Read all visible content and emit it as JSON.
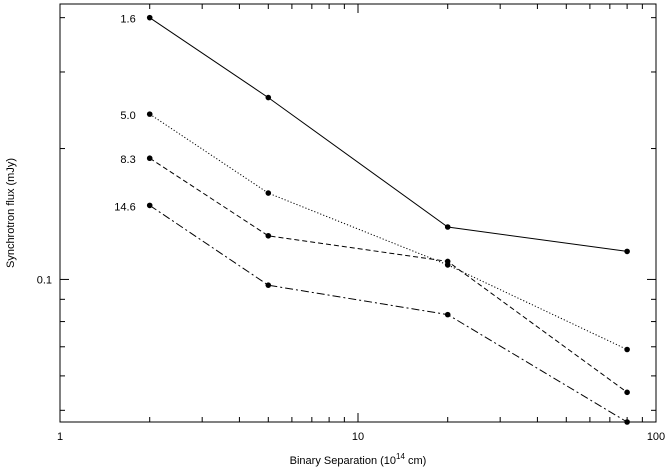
{
  "chart_data": {
    "type": "line",
    "xlabel_main": "Binary Separation (10",
    "xlabel_exp": "14",
    "xlabel_tail": " cm)",
    "ylabel": "Synchrotron flux (mJy)",
    "xscale": "log",
    "yscale": "log",
    "xlim": [
      1,
      100
    ],
    "ylim": [
      0.047,
      0.43
    ],
    "x_ticks": [
      {
        "value": 1,
        "label": "1"
      },
      {
        "value": 10,
        "label": "10"
      },
      {
        "value": 100,
        "label": "100"
      }
    ],
    "y_ticks": [
      {
        "value": 0.1,
        "label": "0.1"
      }
    ],
    "grid": false,
    "series": [
      {
        "name": "1.6",
        "style": "solid",
        "x": [
          2,
          5,
          20,
          80
        ],
        "y": [
          0.4,
          0.262,
          0.132,
          0.116
        ]
      },
      {
        "name": "5.0",
        "style": "dotted",
        "x": [
          2,
          5,
          20,
          80
        ],
        "y": [
          0.24,
          0.158,
          0.108,
          0.069
        ]
      },
      {
        "name": "8.3",
        "style": "dashed",
        "x": [
          2,
          5,
          20,
          80
        ],
        "y": [
          0.19,
          0.126,
          0.11,
          0.055
        ]
      },
      {
        "name": "14.6",
        "style": "dashdot",
        "x": [
          2,
          5,
          20,
          80
        ],
        "y": [
          0.148,
          0.097,
          0.083,
          0.047
        ]
      }
    ]
  }
}
